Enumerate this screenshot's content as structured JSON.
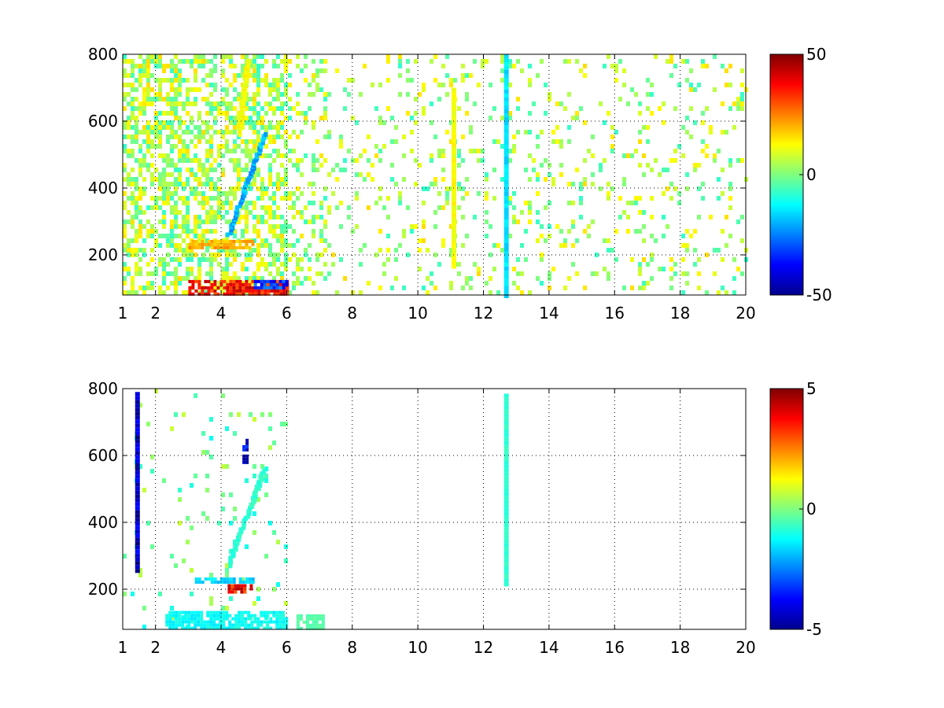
{
  "chart_data": [
    {
      "type": "heatmap",
      "panel": "top",
      "title": "",
      "xlabel": "",
      "ylabel": "",
      "xlim": [
        1,
        20
      ],
      "ylim": [
        80,
        800
      ],
      "x_ticks": [
        1,
        2,
        4,
        6,
        8,
        10,
        12,
        14,
        16,
        18,
        20
      ],
      "x_tick_labels": [
        "1",
        "2",
        "4",
        "6",
        "8",
        "10",
        "12",
        "14",
        "16",
        "18",
        "20"
      ],
      "y_ticks": [
        200,
        400,
        600,
        800
      ],
      "y_tick_labels": [
        "200",
        "400",
        "600",
        "800"
      ],
      "grid": true,
      "colormap": "jet",
      "clim": [
        -50,
        50
      ],
      "colorbar": {
        "ticks": [
          50,
          0,
          -50
        ],
        "tick_labels": [
          "50",
          "0",
          "-50"
        ],
        "position": "right"
      },
      "features": [
        {
          "kind": "band",
          "x_range": [
            3,
            6
          ],
          "y_range": [
            85,
            125
          ],
          "value": 45
        },
        {
          "kind": "band",
          "x_range": [
            3,
            5
          ],
          "y_range": [
            220,
            245
          ],
          "value": 25
        },
        {
          "kind": "band",
          "x_range": [
            5,
            6
          ],
          "y_range": [
            100,
            125
          ],
          "value": -40
        },
        {
          "kind": "streak",
          "x_from": 4.2,
          "y_from": 260,
          "x_to": 5.3,
          "y_to": 560,
          "value": -25
        },
        {
          "kind": "streak",
          "x_from": 4.5,
          "y_from": 560,
          "x_to": 4.8,
          "y_to": 780,
          "value": 15
        },
        {
          "kind": "column",
          "x": 11.1,
          "y_range": [
            170,
            700
          ],
          "value": 12
        },
        {
          "kind": "column",
          "x": 12.7,
          "y_range": [
            80,
            800
          ],
          "value": -15
        }
      ]
    },
    {
      "type": "heatmap",
      "panel": "bottom",
      "title": "",
      "xlabel": "",
      "ylabel": "",
      "xlim": [
        1,
        20
      ],
      "ylim": [
        80,
        800
      ],
      "x_ticks": [
        1,
        2,
        4,
        6,
        8,
        10,
        12,
        14,
        16,
        18,
        20
      ],
      "x_tick_labels": [
        "1",
        "2",
        "4",
        "6",
        "8",
        "10",
        "12",
        "14",
        "16",
        "18",
        "20"
      ],
      "y_ticks": [
        200,
        400,
        600,
        800
      ],
      "y_tick_labels": [
        "200",
        "400",
        "600",
        "800"
      ],
      "grid": true,
      "colormap": "jet",
      "clim": [
        -5,
        5
      ],
      "colorbar": {
        "ticks": [
          5,
          0,
          -5
        ],
        "tick_labels": [
          "5",
          "0",
          "-5"
        ],
        "position": "right"
      },
      "features": [
        {
          "kind": "band",
          "x_range": [
            2.3,
            6
          ],
          "y_range": [
            85,
            135
          ],
          "value": -1.5
        },
        {
          "kind": "band",
          "x_range": [
            3.2,
            5
          ],
          "y_range": [
            225,
            235
          ],
          "value": -2
        },
        {
          "kind": "band",
          "x_range": [
            4.2,
            4.9
          ],
          "y_range": [
            190,
            215
          ],
          "value": 4.5
        },
        {
          "kind": "band",
          "x_range": [
            4.65,
            4.8
          ],
          "y_range": [
            580,
            650
          ],
          "value": -5
        },
        {
          "kind": "band",
          "x_range": [
            6.3,
            7.1
          ],
          "y_range": [
            85,
            125
          ],
          "value": -0.5
        },
        {
          "kind": "streak",
          "x_from": 4.2,
          "y_from": 270,
          "x_to": 5.3,
          "y_to": 560,
          "value": -1
        },
        {
          "kind": "column",
          "x": 12.7,
          "y_range": [
            215,
            785
          ],
          "value": -0.8
        },
        {
          "kind": "column",
          "x": 1.45,
          "y_range": [
            260,
            790
          ],
          "value": -4.5
        }
      ]
    }
  ]
}
